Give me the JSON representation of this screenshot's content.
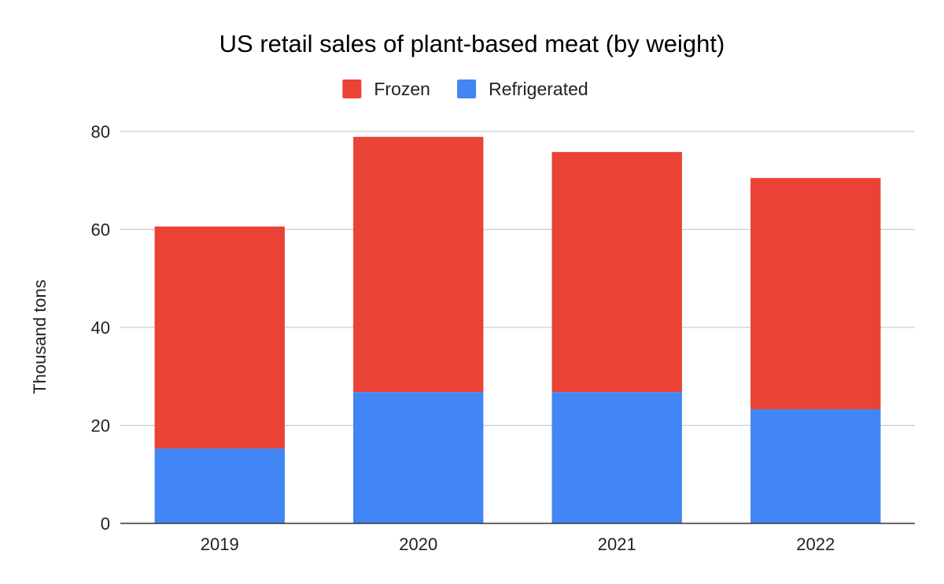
{
  "chart_data": {
    "type": "bar",
    "stacked": true,
    "title": "US retail sales of plant-based meat (by weight)",
    "xlabel": "",
    "ylabel": "Thousand tons",
    "categories": [
      "2019",
      "2020",
      "2021",
      "2022"
    ],
    "series": [
      {
        "name": "Refrigerated",
        "color": "#4285f4",
        "values": [
          15.3,
          26.8,
          26.8,
          23.3
        ]
      },
      {
        "name": "Frozen",
        "color": "#ea4335",
        "values": [
          45.3,
          52.1,
          49.0,
          47.2
        ]
      }
    ],
    "legend_order": [
      "Frozen",
      "Refrigerated"
    ],
    "legend_position": "top",
    "ylim": [
      0,
      80
    ],
    "yticks": [
      0,
      20,
      40,
      60,
      80
    ],
    "grid": true
  }
}
